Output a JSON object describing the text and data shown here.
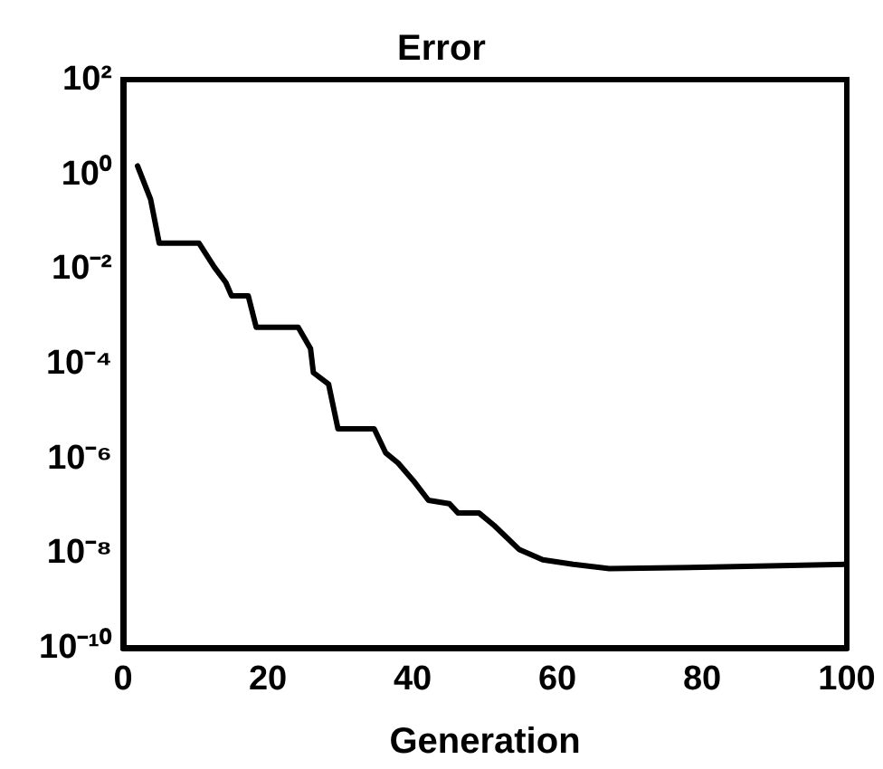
{
  "chart_data": {
    "type": "line",
    "title": "Error",
    "xlabel": "Generation",
    "log": "y",
    "grid": false,
    "marker": "none",
    "line_style": "solid",
    "xlim": [
      0,
      100
    ],
    "xticks": [
      0,
      20,
      40,
      60,
      80,
      100
    ],
    "ylim": [
      1e-10,
      100
    ],
    "yticks": [
      {
        "value": 100,
        "label": "10²"
      },
      {
        "value": 1,
        "label": "10⁰"
      },
      {
        "value": 0.01,
        "label": "10⁻²"
      },
      {
        "value": 0.0001,
        "label": "10⁻⁴"
      },
      {
        "value": 1e-06,
        "label": "10⁻⁶"
      },
      {
        "value": 1e-08,
        "label": "10⁻⁸"
      },
      {
        "value": 1e-10,
        "label": "10⁻¹⁰"
      }
    ],
    "series": [
      {
        "color": "#000000",
        "x": [
          2,
          3.8,
          5,
          10.5,
          12.6,
          14.2,
          15,
          17.3,
          18.4,
          24.2,
          25.9,
          26.3,
          28.4,
          29.7,
          34.7,
          36.3,
          38,
          40.1,
          42.2,
          45.1,
          46.3,
          49.2,
          51.3,
          54.7,
          58,
          62.2,
          67.2,
          80,
          100
        ],
        "values": [
          1.5,
          0.3,
          0.035,
          0.035,
          0.011,
          0.0052,
          0.0027,
          0.0027,
          0.00059,
          0.00059,
          0.00021,
          6.5e-05,
          3.7e-05,
          4.2e-06,
          4.2e-06,
          1.3e-06,
          8e-07,
          3.4e-07,
          1.3e-07,
          1.1e-07,
          7e-08,
          7e-08,
          3.8e-08,
          1.2e-08,
          7.2e-09,
          5.8e-09,
          4.7e-09,
          5e-09,
          5.8e-09
        ]
      }
    ]
  }
}
